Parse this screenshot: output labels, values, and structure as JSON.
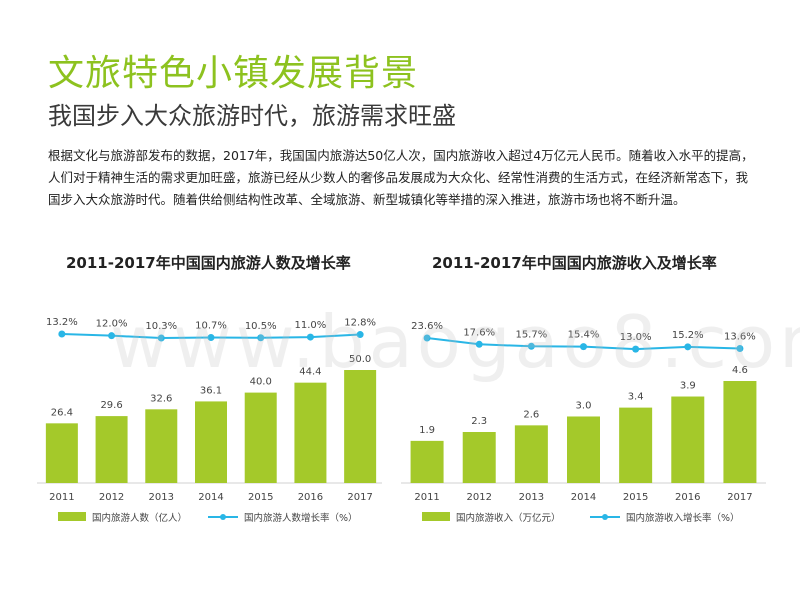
{
  "page": {
    "title": "文旅特色小镇发展背景",
    "subtitle": "我国步入大众旅游时代，旅游需求旺盛",
    "body": "根据文化与旅游部发布的数据，2017年，我国国内旅游达50亿人次，国内旅游收入超过4万亿元人民币。随着收入水平的提高，人们对于精神生活的需求更加旺盛，旅游已经从少数人的奢侈品发展成为大众化、经常性消费的生活方式，在经济新常态下，我国步入大众旅游时代。随着供给侧结构性改革、全域旅游、新型城镇化等举措的深入推进，旅游市场也将不断升温。",
    "watermark": "www.baogao8.com"
  },
  "colors": {
    "title": "#8dc21f",
    "bar": "#a4c92a",
    "line": "#29b6e6"
  },
  "chart_data": [
    {
      "type": "bar",
      "title": "2011-2017年中国国内旅游人数及增长率",
      "categories": [
        "2011",
        "2012",
        "2013",
        "2014",
        "2015",
        "2016",
        "2017"
      ],
      "series": [
        {
          "name": "国内旅游人数（亿人）",
          "type": "bar",
          "values": [
            26.4,
            29.6,
            32.6,
            36.1,
            40.0,
            44.4,
            50.0
          ],
          "labels": [
            "26.4",
            "29.6",
            "32.6",
            "36.1",
            "40.0",
            "44.4",
            "50.0"
          ]
        },
        {
          "name": "国内旅游人数增长率（%）",
          "type": "line",
          "values": [
            13.2,
            12.0,
            10.3,
            10.7,
            10.5,
            11.0,
            12.8
          ],
          "labels": [
            "13.2%",
            "12.0%",
            "10.3%",
            "10.7%",
            "10.5%",
            "11.0%",
            "12.8%"
          ]
        }
      ],
      "legend": "bottom",
      "grid": false
    },
    {
      "type": "bar",
      "title": "2011-2017年中国国内旅游收入及增长率",
      "categories": [
        "2011",
        "2012",
        "2013",
        "2014",
        "2015",
        "2016",
        "2017"
      ],
      "series": [
        {
          "name": "国内旅游收入（万亿元）",
          "type": "bar",
          "values": [
            1.9,
            2.3,
            2.6,
            3.0,
            3.4,
            3.9,
            4.6
          ],
          "labels": [
            "1.9",
            "2.3",
            "2.6",
            "3.0",
            "3.4",
            "3.9",
            "4.6"
          ]
        },
        {
          "name": "国内旅游收入增长率（%）",
          "type": "line",
          "values": [
            23.6,
            17.6,
            15.7,
            15.4,
            13.0,
            15.2,
            13.6
          ],
          "labels": [
            "23.6%",
            "17.6%",
            "15.7%",
            "15.4%",
            "13.0%",
            "15.2%",
            "13.6%"
          ]
        }
      ],
      "legend": "bottom",
      "grid": false
    }
  ]
}
